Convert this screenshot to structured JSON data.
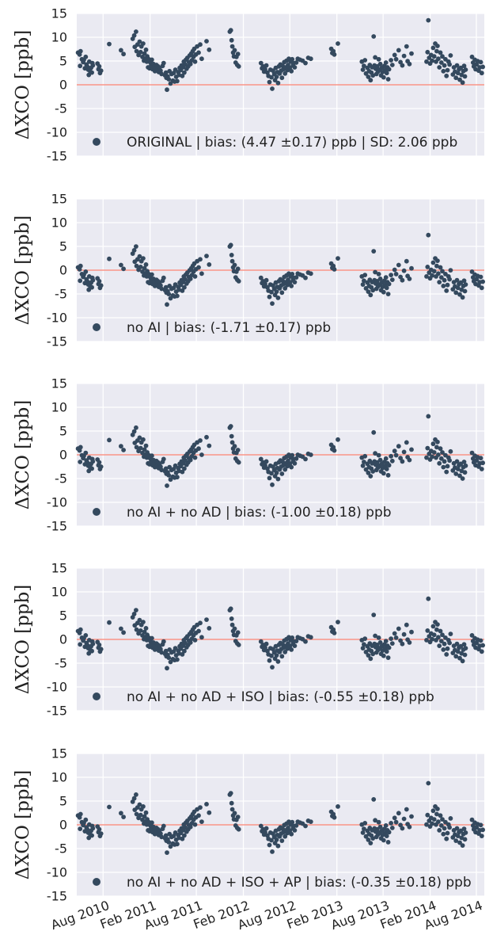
{
  "figure": {
    "point_color": "#34495e",
    "zero_line_color": "#fa8072",
    "panel_background": "#eaeaf2",
    "grid_color": "#ffffff"
  },
  "chart_data": [
    {
      "type": "scatter",
      "ylabel": "ΔXCO [ppb]",
      "ylim": [
        -15,
        15
      ],
      "yticks": [
        15,
        10,
        5,
        0,
        -5,
        -10,
        -15
      ],
      "legend": "ORIGINAL | bias: (4.47 ±0.17) ppb | SD: 2.06 ppb",
      "legend_position": "lower-left",
      "grid": true,
      "offset": 4.47
    },
    {
      "type": "scatter",
      "ylabel": "ΔXCO [ppb]",
      "ylim": [
        -15,
        15
      ],
      "yticks": [
        15,
        10,
        5,
        0,
        -5,
        -10,
        -15
      ],
      "legend": "no AI | bias: (-1.71 ±0.17) ppb",
      "legend_position": "lower-left",
      "grid": true,
      "offset": -1.71
    },
    {
      "type": "scatter",
      "ylabel": "ΔXCO [ppb]",
      "ylim": [
        -15,
        15
      ],
      "yticks": [
        15,
        10,
        5,
        0,
        -5,
        -10,
        -15
      ],
      "legend": "no AI + no AD | bias: (-1.00 ±0.18) ppb",
      "legend_position": "lower-left",
      "grid": true,
      "offset": -1.0
    },
    {
      "type": "scatter",
      "ylabel": "ΔXCO [ppb]",
      "ylim": [
        -15,
        15
      ],
      "yticks": [
        15,
        10,
        5,
        0,
        -5,
        -10,
        -15
      ],
      "legend": "no AI + no AD + ISO | bias: (-0.55 ±0.18) ppb",
      "legend_position": "lower-left",
      "grid": true,
      "offset": -0.55
    },
    {
      "type": "scatter",
      "ylabel": "ΔXCO [ppb]",
      "ylim": [
        -15,
        15
      ],
      "yticks": [
        15,
        10,
        5,
        0,
        -5,
        -10,
        -15
      ],
      "legend": "no AI + no AD + ISO + AP | bias: (-0.35 ±0.18) ppb",
      "legend_position": "lower-left",
      "grid": true,
      "offset": -0.35
    }
  ],
  "x_axis": {
    "tick_labels": [
      "Aug 2010",
      "Feb 2011",
      "Aug 2011",
      "Feb 2012",
      "Aug 2012",
      "Feb 2013",
      "Aug 2013",
      "Feb 2014",
      "Aug 2014"
    ],
    "tick_dates": [
      "2010-08-01",
      "2011-02-01",
      "2011-08-01",
      "2012-02-01",
      "2012-08-01",
      "2013-02-01",
      "2013-08-01",
      "2014-02-01",
      "2014-08-01"
    ],
    "xlim": [
      "2010-04-20",
      "2014-09-01"
    ]
  },
  "base_series": [
    [
      "2010-04-25",
      2.3
    ],
    [
      "2010-05-01",
      1.9
    ],
    [
      "2010-05-03",
      -0.5
    ],
    [
      "2010-05-05",
      2.6
    ],
    [
      "2010-05-10",
      0.9
    ],
    [
      "2010-05-15",
      0.3
    ],
    [
      "2010-05-18",
      0.8
    ],
    [
      "2010-05-22",
      -1.0
    ],
    [
      "2010-05-25",
      1.4
    ],
    [
      "2010-05-28",
      -0.2
    ],
    [
      "2010-06-01",
      -0.7
    ],
    [
      "2010-06-04",
      -1.3
    ],
    [
      "2010-06-06",
      -2.4
    ],
    [
      "2010-06-08",
      0.4
    ],
    [
      "2010-06-12",
      -1.7
    ],
    [
      "2010-06-15",
      -0.9
    ],
    [
      "2010-06-18",
      -1.9
    ],
    [
      "2010-06-20",
      0.1
    ],
    [
      "2010-06-22",
      -0.4
    ],
    [
      "2010-07-10",
      0.0
    ],
    [
      "2010-07-14",
      -1.2
    ],
    [
      "2010-07-17",
      -0.6
    ],
    [
      "2010-07-20",
      -2.0
    ],
    [
      "2010-07-24",
      -1.5
    ],
    [
      "2010-08-25",
      4.1
    ],
    [
      "2010-10-10",
      2.8
    ],
    [
      "2010-10-20",
      2.0
    ],
    [
      "2010-11-25",
      5.2
    ],
    [
      "2010-12-01",
      5.9
    ],
    [
      "2010-12-03",
      3.5
    ],
    [
      "2010-12-08",
      6.7
    ],
    [
      "2010-12-10",
      2.6
    ],
    [
      "2010-12-14",
      4.0
    ],
    [
      "2010-12-18",
      1.8
    ],
    [
      "2010-12-22",
      4.6
    ],
    [
      "2010-12-26",
      2.4
    ],
    [
      "2010-12-29",
      3.6
    ],
    [
      "2011-01-02",
      1.4
    ],
    [
      "2011-01-05",
      4.2
    ],
    [
      "2011-01-08",
      0.6
    ],
    [
      "2011-01-10",
      2.1
    ],
    [
      "2011-01-13",
      1.0
    ],
    [
      "2011-01-16",
      2.9
    ],
    [
      "2011-01-19",
      0.4
    ],
    [
      "2011-01-21",
      1.5
    ],
    [
      "2011-01-24",
      -0.8
    ],
    [
      "2011-01-27",
      0.9
    ],
    [
      "2011-01-30",
      -1.0
    ],
    [
      "2011-02-02",
      0.2
    ],
    [
      "2011-02-05",
      -0.4
    ],
    [
      "2011-02-08",
      0.8
    ],
    [
      "2011-02-11",
      -1.2
    ],
    [
      "2011-02-14",
      -0.1
    ],
    [
      "2011-02-17",
      -0.7
    ],
    [
      "2011-02-20",
      -1.6
    ],
    [
      "2011-02-23",
      -0.9
    ],
    [
      "2011-02-26",
      -0.3
    ],
    [
      "2011-03-01",
      -1.3
    ],
    [
      "2011-03-04",
      -0.6
    ],
    [
      "2011-03-07",
      -1.8
    ],
    [
      "2011-03-10",
      -0.9
    ],
    [
      "2011-03-14",
      -1.5
    ],
    [
      "2011-03-18",
      -2.2
    ],
    [
      "2011-03-22",
      -0.5
    ],
    [
      "2011-03-26",
      0.1
    ],
    [
      "2011-04-01",
      -2.5
    ],
    [
      "2011-04-04",
      -1.9
    ],
    [
      "2011-04-06",
      -3.0
    ],
    [
      "2011-04-08",
      -5.5
    ],
    [
      "2011-04-11",
      -2.7
    ],
    [
      "2011-04-15",
      -3.3
    ],
    [
      "2011-04-18",
      -1.6
    ],
    [
      "2011-04-22",
      -4.2
    ],
    [
      "2011-04-26",
      -2.2
    ],
    [
      "2011-05-01",
      -3.6
    ],
    [
      "2011-05-04",
      -2.0
    ],
    [
      "2011-05-08",
      -3.8
    ],
    [
      "2011-05-11",
      -1.3
    ],
    [
      "2011-05-14",
      -2.8
    ],
    [
      "2011-05-18",
      -3.7
    ],
    [
      "2011-05-22",
      -1.8
    ],
    [
      "2011-05-25",
      -2.4
    ],
    [
      "2011-05-28",
      -0.9
    ],
    [
      "2011-06-01",
      -1.4
    ],
    [
      "2011-06-04",
      -0.4
    ],
    [
      "2011-06-07",
      -2.6
    ],
    [
      "2011-06-10",
      -0.8
    ],
    [
      "2011-06-13",
      0.4
    ],
    [
      "2011-06-15",
      -1.9
    ],
    [
      "2011-06-18",
      -0.2
    ],
    [
      "2011-06-21",
      0.8
    ],
    [
      "2011-06-24",
      -1.1
    ],
    [
      "2011-06-27",
      1.2
    ],
    [
      "2011-06-30",
      -0.6
    ],
    [
      "2011-07-03",
      0.3
    ],
    [
      "2011-07-06",
      1.7
    ],
    [
      "2011-07-09",
      -0.1
    ],
    [
      "2011-07-12",
      2.1
    ],
    [
      "2011-07-15",
      0.7
    ],
    [
      "2011-07-18",
      2.6
    ],
    [
      "2011-07-21",
      1.4
    ],
    [
      "2011-07-24",
      3.1
    ],
    [
      "2011-07-27",
      0.4
    ],
    [
      "2011-07-30",
      1.9
    ],
    [
      "2011-08-04",
      3.6
    ],
    [
      "2011-08-10",
      2.3
    ],
    [
      "2011-08-16",
      4.0
    ],
    [
      "2011-08-22",
      1.0
    ],
    [
      "2011-09-10",
      4.7
    ],
    [
      "2011-09-20",
      2.9
    ],
    [
      "2011-12-10",
      6.7
    ],
    [
      "2011-12-14",
      7.0
    ],
    [
      "2011-12-17",
      4.9
    ],
    [
      "2011-12-20",
      3.6
    ],
    [
      "2011-12-23",
      2.3
    ],
    [
      "2011-12-26",
      1.5
    ],
    [
      "2011-12-29",
      2.8
    ],
    [
      "2012-01-02",
      0.2
    ],
    [
      "2012-01-05",
      1.4
    ],
    [
      "2012-01-08",
      -0.3
    ],
    [
      "2012-01-11",
      2.0
    ],
    [
      "2012-01-14",
      -0.6
    ],
    [
      "2012-04-10",
      0.1
    ],
    [
      "2012-04-14",
      -1.0
    ],
    [
      "2012-04-18",
      -0.6
    ],
    [
      "2012-04-22",
      -1.7
    ],
    [
      "2012-04-26",
      -1.2
    ],
    [
      "2012-05-01",
      -0.4
    ],
    [
      "2012-05-05",
      -1.9
    ],
    [
      "2012-05-09",
      -2.6
    ],
    [
      "2012-05-13",
      -3.9
    ],
    [
      "2012-05-17",
      -1.3
    ],
    [
      "2012-05-21",
      -2.9
    ],
    [
      "2012-05-24",
      -5.3
    ],
    [
      "2012-05-27",
      -1.5
    ],
    [
      "2012-06-01",
      -2.2
    ],
    [
      "2012-06-04",
      -3.5
    ],
    [
      "2012-06-07",
      -0.9
    ],
    [
      "2012-06-10",
      -2.8
    ],
    [
      "2012-06-13",
      -1.8
    ],
    [
      "2012-06-16",
      -4.1
    ],
    [
      "2012-06-19",
      -0.6
    ],
    [
      "2012-06-22",
      -2.1
    ],
    [
      "2012-06-25",
      -0.2
    ],
    [
      "2012-06-28",
      -1.5
    ],
    [
      "2012-07-01",
      -3.0
    ],
    [
      "2012-07-04",
      -0.5
    ],
    [
      "2012-07-07",
      -1.2
    ],
    [
      "2012-07-10",
      0.3
    ],
    [
      "2012-07-13",
      -2.1
    ],
    [
      "2012-07-16",
      -0.8
    ],
    [
      "2012-07-19",
      0.6
    ],
    [
      "2012-07-22",
      -1.4
    ],
    [
      "2012-07-25",
      -0.3
    ],
    [
      "2012-07-28",
      1.0
    ],
    [
      "2012-08-01",
      -0.9
    ],
    [
      "2012-08-04",
      0.4
    ],
    [
      "2012-08-07",
      -1.6
    ],
    [
      "2012-08-10",
      0.9
    ],
    [
      "2012-08-13",
      -0.4
    ],
    [
      "2012-08-16",
      0.1
    ],
    [
      "2012-08-20",
      -0.8
    ],
    [
      "2012-08-26",
      0.2
    ],
    [
      "2012-09-01",
      1.0
    ],
    [
      "2012-09-10",
      0.8
    ],
    [
      "2012-09-20",
      0.6
    ],
    [
      "2012-10-01",
      0.1
    ],
    [
      "2012-10-12",
      1.2
    ],
    [
      "2012-10-22",
      1.0
    ],
    [
      "2013-01-10",
      3.1
    ],
    [
      "2013-01-14",
      2.2
    ],
    [
      "2013-01-18",
      2.6
    ],
    [
      "2013-01-22",
      1.9
    ],
    [
      "2013-02-05",
      4.2
    ],
    [
      "2013-05-10",
      0.4
    ],
    [
      "2013-05-14",
      -1.3
    ],
    [
      "2013-05-18",
      -0.5
    ],
    [
      "2013-05-22",
      0.7
    ],
    [
      "2013-05-26",
      -2.1
    ],
    [
      "2013-06-01",
      -0.9
    ],
    [
      "2013-06-04",
      -2.8
    ],
    [
      "2013-06-07",
      -1.6
    ],
    [
      "2013-06-10",
      -0.3
    ],
    [
      "2013-06-13",
      -3.5
    ],
    [
      "2013-06-16",
      -1.9
    ],
    [
      "2013-06-19",
      -0.8
    ],
    [
      "2013-06-22",
      -2.5
    ],
    [
      "2013-06-25",
      5.7
    ],
    [
      "2013-06-28",
      -0.4
    ],
    [
      "2013-07-01",
      1.3
    ],
    [
      "2013-07-03",
      -1.1
    ],
    [
      "2013-07-06",
      -2.2
    ],
    [
      "2013-07-09",
      -0.6
    ],
    [
      "2013-07-12",
      -1.7
    ],
    [
      "2013-07-15",
      0.9
    ],
    [
      "2013-07-18",
      -1.3
    ],
    [
      "2013-07-21",
      -0.1
    ],
    [
      "2013-07-24",
      -2.5
    ],
    [
      "2013-07-27",
      -0.9
    ],
    [
      "2013-07-30",
      -1.8
    ],
    [
      "2013-08-03",
      -2.9
    ],
    [
      "2013-08-06",
      -0.5
    ],
    [
      "2013-08-09",
      -1.4
    ],
    [
      "2013-08-12",
      0.2
    ],
    [
      "2013-08-15",
      -2.0
    ],
    [
      "2013-08-18",
      -0.8
    ],
    [
      "2013-08-21",
      -3.3
    ],
    [
      "2013-08-24",
      -1.2
    ],
    [
      "2013-09-01",
      0.7
    ],
    [
      "2013-09-06",
      -0.3
    ],
    [
      "2013-09-15",
      1.8
    ],
    [
      "2013-09-21",
      0.9
    ],
    [
      "2013-10-01",
      2.8
    ],
    [
      "2013-10-08",
      0.3
    ],
    [
      "2013-10-15",
      -0.4
    ],
    [
      "2013-10-22",
      1.6
    ],
    [
      "2013-11-01",
      3.6
    ],
    [
      "2013-11-05",
      0.5
    ],
    [
      "2013-11-12",
      -0.1
    ],
    [
      "2013-11-20",
      2.1
    ],
    [
      "2014-01-18",
      0.4
    ],
    [
      "2014-01-22",
      2.4
    ],
    [
      "2014-01-25",
      9.1
    ],
    [
      "2014-01-28",
      1.2
    ],
    [
      "2014-02-01",
      0.0
    ],
    [
      "2014-02-05",
      1.8
    ],
    [
      "2014-02-09",
      0.6
    ],
    [
      "2014-02-13",
      3.3
    ],
    [
      "2014-02-17",
      1.5
    ],
    [
      "2014-02-21",
      4.2
    ],
    [
      "2014-02-24",
      0.4
    ],
    [
      "2014-02-27",
      2.6
    ],
    [
      "2014-03-02",
      3.7
    ],
    [
      "2014-03-05",
      1.0
    ],
    [
      "2014-03-09",
      -0.8
    ],
    [
      "2014-03-13",
      2.3
    ],
    [
      "2014-03-17",
      0.2
    ],
    [
      "2014-03-21",
      1.5
    ],
    [
      "2014-03-25",
      -1.6
    ],
    [
      "2014-03-29",
      -0.4
    ],
    [
      "2014-04-02",
      0.9
    ],
    [
      "2014-04-06",
      -2.6
    ],
    [
      "2014-04-10",
      -1.4
    ],
    [
      "2014-04-14",
      0.4
    ],
    [
      "2014-04-18",
      -0.2
    ],
    [
      "2014-04-22",
      1.7
    ],
    [
      "2014-05-01",
      -2.3
    ],
    [
      "2014-05-05",
      -0.8
    ],
    [
      "2014-05-09",
      -1.7
    ],
    [
      "2014-05-13",
      -3.0
    ],
    [
      "2014-05-17",
      -0.4
    ],
    [
      "2014-05-21",
      -2.0
    ],
    [
      "2014-05-25",
      -1.2
    ],
    [
      "2014-05-28",
      -3.4
    ],
    [
      "2014-06-01",
      -0.9
    ],
    [
      "2014-06-04",
      -2.4
    ],
    [
      "2014-06-08",
      -4.0
    ],
    [
      "2014-06-11",
      -1.6
    ],
    [
      "2014-06-14",
      -0.5
    ],
    [
      "2014-06-17",
      -2.7
    ],
    [
      "2014-06-20",
      -1.3
    ],
    [
      "2014-07-15",
      1.4
    ],
    [
      "2014-07-19",
      0.2
    ],
    [
      "2014-07-22",
      -0.6
    ],
    [
      "2014-07-26",
      0.8
    ],
    [
      "2014-07-29",
      -1.2
    ],
    [
      "2014-08-02",
      -0.2
    ],
    [
      "2014-08-06",
      0.5
    ],
    [
      "2014-08-10",
      -1.5
    ],
    [
      "2014-08-14",
      -0.8
    ],
    [
      "2014-08-18",
      0.3
    ],
    [
      "2014-08-22",
      -2.0
    ],
    [
      "2014-08-26",
      -0.7
    ]
  ]
}
